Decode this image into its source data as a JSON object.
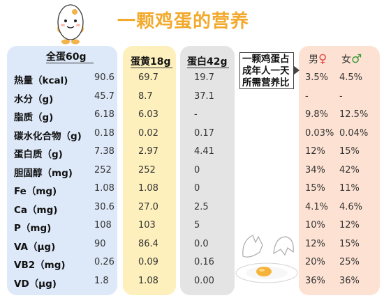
{
  "title": "一颗鸡蛋的营养",
  "headers": {
    "whole": "全蛋60g",
    "yolk": "蛋黄18g",
    "white": "蛋白42g",
    "note": "一颗鸡蛋占成年人一天所需营养比",
    "male": "男",
    "female": "女",
    "male_symbol": "♀",
    "female_symbol": "♂"
  },
  "rows": [
    {
      "name": "热量（kcal)",
      "whole": "90.6",
      "yolk": "69.7",
      "white": "19.7",
      "male": "3.5%",
      "female": "4.5%"
    },
    {
      "name": "水分（g)",
      "whole": "45.7",
      "yolk": "8.7",
      "white": "37.1",
      "male": "-",
      "female": "-"
    },
    {
      "name": "脂质（g)",
      "whole": "6.18",
      "yolk": "6.03",
      "white": "-",
      "male": "9.8%",
      "female": "12.5%"
    },
    {
      "name": "碳水化合物（g)",
      "whole": "0.18",
      "yolk": "0.02",
      "white": "0.17",
      "male": "0.03%",
      "female": "0.04%"
    },
    {
      "name": "蛋白质（g)",
      "whole": "7.38",
      "yolk": "2.97",
      "white": "4.41",
      "male": "12%",
      "female": "15%"
    },
    {
      "name": "胆固醇（mg)",
      "whole": "252",
      "yolk": "252",
      "white": "0",
      "male": "34%",
      "female": "42%"
    },
    {
      "name": "Fe（mg)",
      "whole": "1.08",
      "yolk": "1.08",
      "white": "0",
      "male": "15%",
      "female": "11%"
    },
    {
      "name": "Ca（mg)",
      "whole": "30.6",
      "yolk": "27.0",
      "white": "2.5",
      "male": "4.1%",
      "female": "4.6%"
    },
    {
      "name": "P（mg)",
      "whole": "108",
      "yolk": "103",
      "white": "5",
      "male": "10%",
      "female": "12%"
    },
    {
      "name": "VA（μg)",
      "whole": "90",
      "yolk": "86.4",
      "white": "0.0",
      "male": "12%",
      "female": "15%"
    },
    {
      "name": "VB2（mg)",
      "whole": "0.26",
      "yolk": "0.09",
      "white": "0.16",
      "male": "20%",
      "female": "25%"
    },
    {
      "name": "VD（μg)",
      "whole": "1.8",
      "yolk": "1.08",
      "white": "0.00",
      "male": "36%",
      "female": "36%"
    }
  ],
  "colors": {
    "title": "#f2a92c",
    "whole_bg": "#dde8f8",
    "yolk_bg": "#fdf0bd",
    "white_bg": "#e4e4e4",
    "pct_bg": "#fde2d3",
    "female_symbol": "#e24b4b",
    "male_symbol": "#3a9a3a"
  },
  "icons": {
    "mascot": "egg-mascot-icon",
    "broken_egg": "cracked-egg-icon"
  }
}
